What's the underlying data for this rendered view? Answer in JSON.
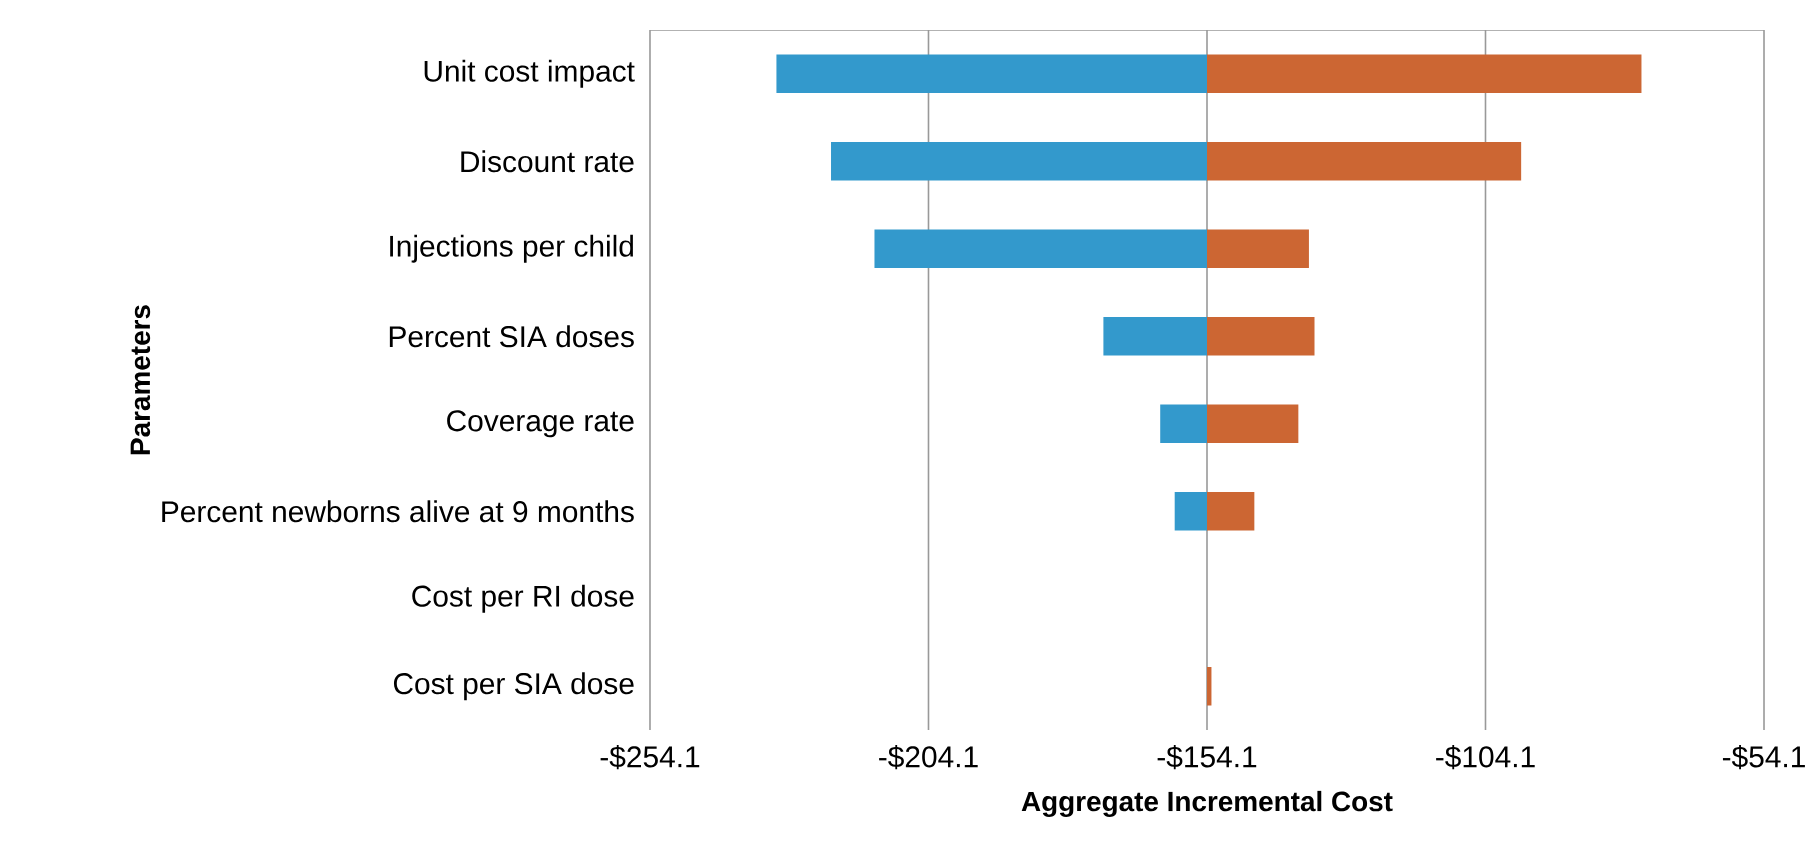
{
  "chart_data": {
    "type": "bar",
    "orientation": "horizontal",
    "categories": [
      "Unit cost impact",
      "Discount rate",
      "Injections per child",
      "Percent SIA doses",
      "Coverage rate",
      "Percent newborns alive at 9 months",
      "Cost per RI dose",
      "Cost per SIA dose"
    ],
    "series": [
      {
        "color": "#3399cc",
        "base": [
          -154.1,
          -154.1,
          -154.1,
          -154.1,
          -154.1,
          -154.1,
          null,
          null
        ],
        "values": [
          -77.3,
          -67.5,
          -59.7,
          -18.6,
          -8.4,
          -5.8,
          null,
          null
        ]
      },
      {
        "color": "#cc6633",
        "base": [
          -154.1,
          -154.1,
          -154.1,
          -154.1,
          -154.1,
          -154.1,
          null,
          -154.1
        ],
        "values": [
          78.0,
          56.4,
          18.3,
          19.3,
          16.4,
          8.5,
          null,
          0.8
        ]
      }
    ],
    "xlim": [
      -254.1,
      -54.1
    ],
    "xticks": [
      {
        "value": -254.1,
        "label": "-$254.1"
      },
      {
        "value": -204.1,
        "label": "-$204.1"
      },
      {
        "value": -154.1,
        "label": "-$154.1"
      },
      {
        "value": -104.1,
        "label": "-$104.1"
      },
      {
        "value": -54.1,
        "label": "-$54.1"
      }
    ],
    "grid": "x",
    "xlabel": "Aggregate Incremental Cost",
    "ylabel": "Parameters"
  }
}
